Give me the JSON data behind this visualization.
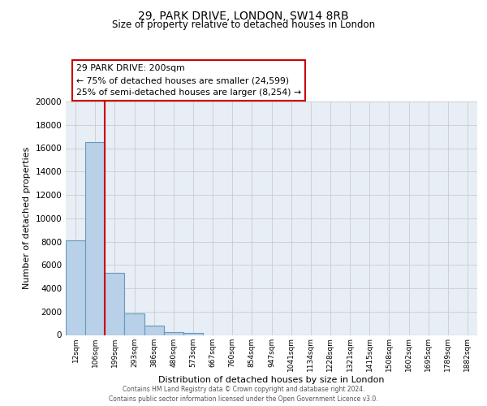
{
  "title": "29, PARK DRIVE, LONDON, SW14 8RB",
  "subtitle": "Size of property relative to detached houses in London",
  "xlabel": "Distribution of detached houses by size in London",
  "ylabel": "Number of detached properties",
  "categories": [
    "12sqm",
    "106sqm",
    "199sqm",
    "293sqm",
    "386sqm",
    "480sqm",
    "573sqm",
    "667sqm",
    "760sqm",
    "854sqm",
    "947sqm",
    "1041sqm",
    "1134sqm",
    "1228sqm",
    "1321sqm",
    "1415sqm",
    "1508sqm",
    "1602sqm",
    "1695sqm",
    "1789sqm",
    "1882sqm"
  ],
  "values": [
    8100,
    16500,
    5300,
    1850,
    800,
    250,
    200,
    0,
    0,
    0,
    0,
    0,
    0,
    0,
    0,
    0,
    0,
    0,
    0,
    0,
    0
  ],
  "bar_color": "#b8d0e8",
  "bar_edge_color": "#6699bb",
  "highlight_line_color": "#cc0000",
  "annotation_title": "29 PARK DRIVE: 200sqm",
  "annotation_line1": "← 75% of detached houses are smaller (24,599)",
  "annotation_line2": "25% of semi-detached houses are larger (8,254) →",
  "ylim": [
    0,
    20000
  ],
  "yticks": [
    0,
    2000,
    4000,
    6000,
    8000,
    10000,
    12000,
    14000,
    16000,
    18000,
    20000
  ],
  "grid_color": "#cccccc",
  "bg_color": "#e8eef5",
  "footer_line1": "Contains HM Land Registry data © Crown copyright and database right 2024.",
  "footer_line2": "Contains public sector information licensed under the Open Government Licence v3.0."
}
